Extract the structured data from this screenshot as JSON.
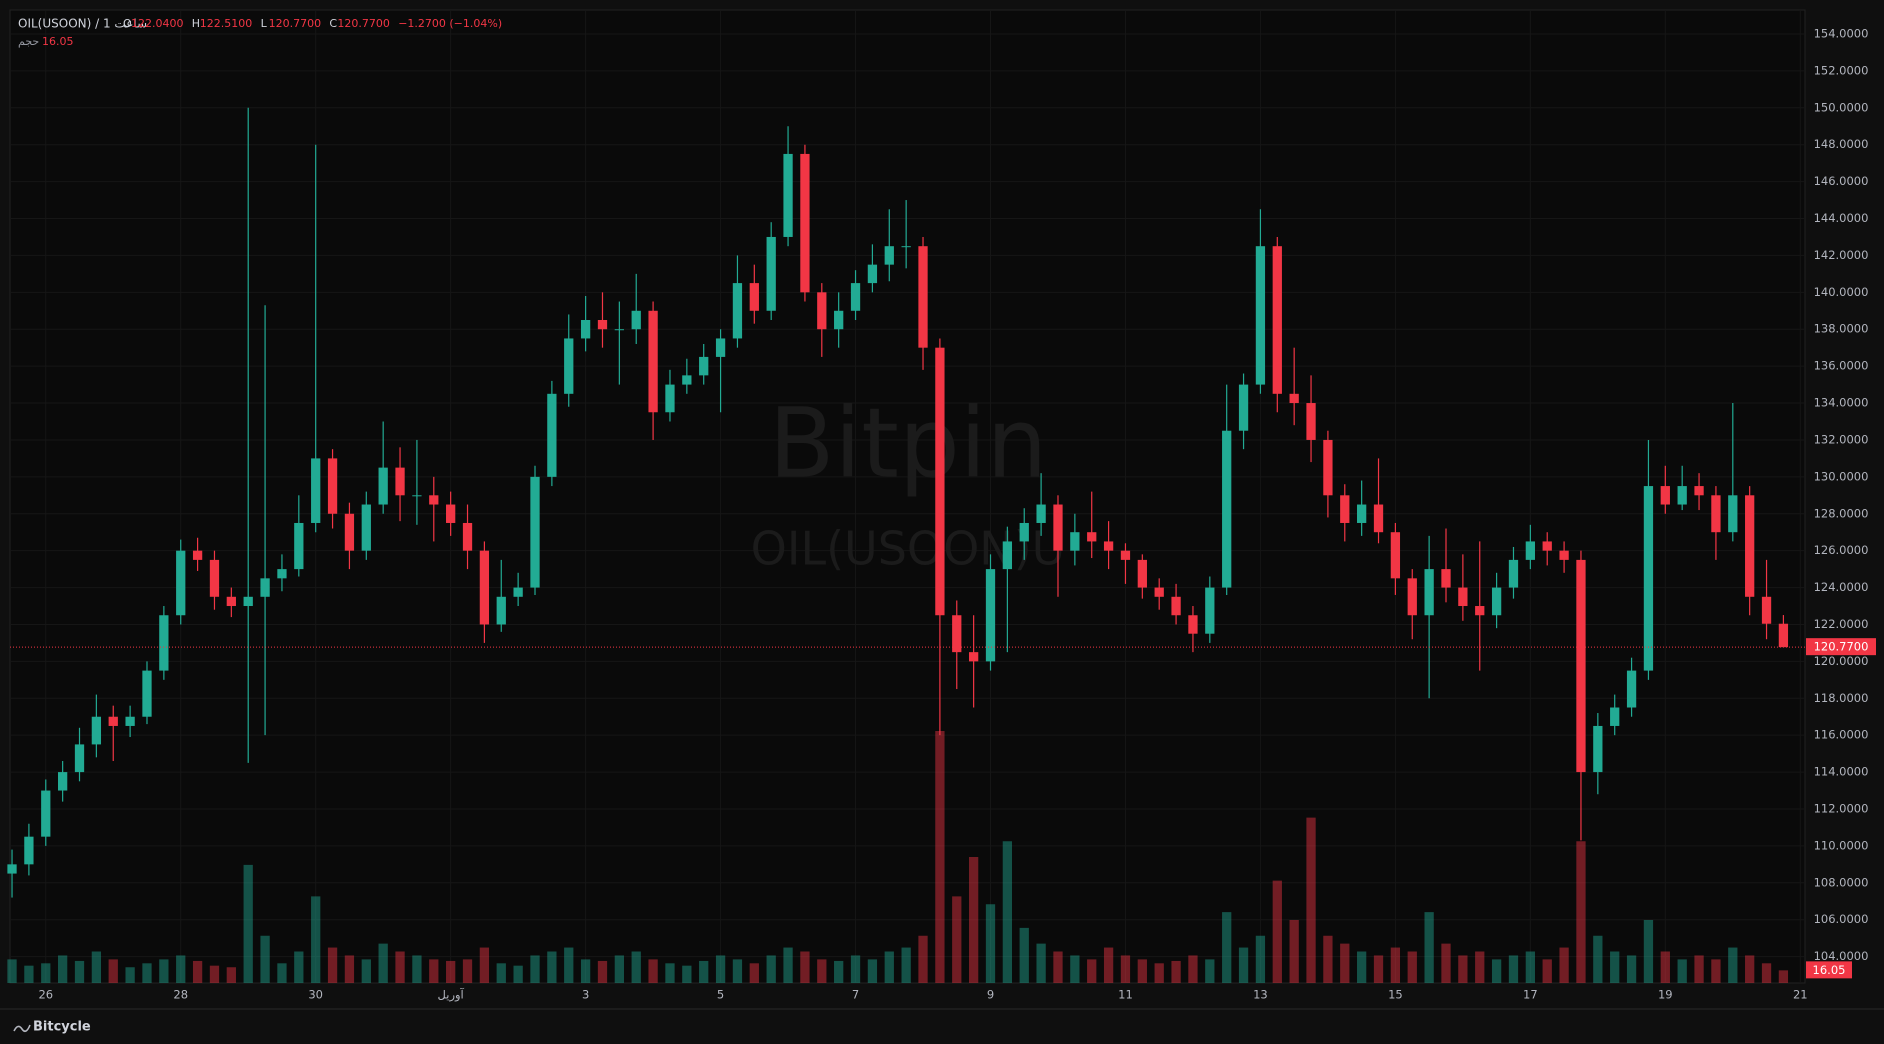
{
  "chart_data": {
    "type": "candlestick",
    "header": {
      "symbol": "OIL(USOON) / 1 ساعت",
      "ohlc": [
        {
          "label": "O",
          "text": "122.0400"
        },
        {
          "label": "H",
          "text": "122.5100"
        },
        {
          "label": "L",
          "text": "120.7700"
        },
        {
          "label": "C",
          "text": "120.7700"
        }
      ],
      "change": "−1.2700 (−1.04%)",
      "volume_label": "حجم",
      "volume_text": "16.05"
    },
    "watermark": {
      "brand": "Bitpin",
      "symbol": "OIL(USOON)U"
    },
    "footer": "Bitcycle",
    "up_color": "#22ab94",
    "down_color": "#f23645",
    "x": [
      -0.5,
      -0.25,
      0,
      0.25,
      0.5,
      0.75,
      1,
      1.25,
      1.5,
      1.75,
      2,
      2.25,
      2.5,
      2.75,
      3,
      3.25,
      3.5,
      3.75,
      4,
      4.25,
      4.5,
      4.75,
      5,
      5.25,
      5.5,
      5.75,
      6,
      6.25,
      6.5,
      6.75,
      7,
      7.25,
      7.5,
      7.75,
      8,
      8.25,
      8.5,
      8.75,
      9,
      9.25,
      9.5,
      9.75,
      10,
      10.25,
      10.5,
      10.75,
      11,
      11.25,
      11.5,
      11.75,
      12,
      12.25,
      12.5,
      12.75,
      13,
      13.25,
      13.5,
      13.75,
      14,
      14.25,
      14.5,
      14.75,
      15,
      15.25,
      15.5,
      15.75,
      16,
      16.25,
      16.5,
      16.75,
      17,
      17.25,
      17.5,
      17.75,
      18,
      18.25,
      18.5,
      18.75,
      19,
      19.25,
      19.5,
      19.75,
      20,
      20.25,
      20.5,
      20.75,
      21,
      21.25,
      21.5,
      21.75,
      22,
      22.25,
      22.5,
      22.75,
      23,
      23.25,
      23.5,
      23.75,
      24,
      24.25,
      24.5,
      24.75,
      25,
      25.25,
      25.5,
      25.75
    ],
    "series": [
      {
        "open": [
          108.5,
          109,
          110.5,
          113,
          114,
          115.5,
          117,
          116.5,
          117,
          119.5,
          122.5,
          126,
          125.5,
          123.5,
          123,
          123.5,
          124.5,
          125,
          127.5,
          131,
          128,
          126,
          128.5,
          130.5,
          129,
          129,
          128.5,
          127.5,
          126,
          122,
          123.5,
          124,
          130,
          134.5,
          137.5,
          138.5,
          138,
          138,
          139,
          133.5,
          135,
          135.5,
          136.5,
          137.5,
          140.5,
          139,
          143,
          147.5,
          140,
          138,
          139,
          140.5,
          141.5,
          142.5,
          142.5,
          137,
          122.5,
          120.5,
          120,
          125,
          126.5,
          127.5,
          128.5,
          126,
          127,
          126.5,
          126,
          125.5,
          124,
          123.5,
          122.5,
          121.5,
          124,
          132.5,
          135,
          142.5,
          134.5,
          134,
          132,
          129,
          127.5,
          128.5,
          127,
          124.5,
          122.5,
          125,
          124,
          123,
          122.5,
          124,
          125.5,
          126.5,
          126,
          125.5,
          114,
          116.5,
          117.5,
          119.5,
          129.5,
          128.5,
          129.5,
          129,
          127,
          129,
          123.5,
          122.04
        ],
        "high": [
          109.8,
          111.2,
          113.6,
          114.6,
          116.4,
          118.2,
          117.6,
          117.6,
          120,
          123,
          126.6,
          126.7,
          126,
          124,
          150,
          139.3,
          125.8,
          129,
          148,
          131.5,
          128.6,
          129.2,
          133,
          131.6,
          132,
          130,
          129.2,
          128.5,
          126.5,
          125.5,
          124.8,
          130.6,
          135.2,
          138.8,
          139.8,
          140,
          139.5,
          141,
          139.5,
          135.8,
          136.4,
          137.2,
          138,
          142,
          141.5,
          143.8,
          149,
          148,
          140.5,
          140,
          141.2,
          142.6,
          144.5,
          145,
          143,
          137.5,
          123.3,
          122.5,
          125.8,
          127.3,
          128.3,
          130.2,
          129,
          128,
          129.2,
          127.6,
          126.4,
          125.8,
          124.5,
          124.2,
          123,
          124.6,
          135,
          135.6,
          144.5,
          143,
          137,
          135.5,
          132.5,
          129.6,
          129.8,
          131,
          127.5,
          125,
          126.8,
          127.2,
          125.8,
          126.5,
          124.8,
          126.2,
          127.4,
          127,
          126.5,
          126,
          117.2,
          118.2,
          120.2,
          132,
          130.6,
          130.6,
          130.2,
          129.5,
          134,
          129.5,
          125.5,
          122.51
        ],
        "low": [
          107.2,
          108.4,
          110,
          112.4,
          113.5,
          114.8,
          114.6,
          115.9,
          116.6,
          119,
          122,
          124.9,
          122.8,
          122.4,
          114.5,
          116,
          123.8,
          124.6,
          127,
          127.2,
          125,
          125.5,
          128,
          127.6,
          127.4,
          126.5,
          126.8,
          125,
          121,
          121.6,
          123,
          123.6,
          129.5,
          133.8,
          136.8,
          137,
          135,
          137.2,
          132,
          133,
          134.5,
          135,
          133.5,
          137,
          138.3,
          138.5,
          142.5,
          139.5,
          136.5,
          137,
          138.5,
          140,
          140.6,
          141.3,
          135.8,
          116,
          118.5,
          117.5,
          119.5,
          120.5,
          125.5,
          126.8,
          123.5,
          125.2,
          125.6,
          125,
          124.2,
          123.4,
          122.8,
          122,
          120.5,
          121,
          123.6,
          131.5,
          134.5,
          133.5,
          132.8,
          130.8,
          127.8,
          126.5,
          126.8,
          126.4,
          123.6,
          121.2,
          118,
          123.2,
          122.2,
          119.5,
          121.8,
          123.4,
          125,
          125.2,
          124.8,
          110.3,
          112.8,
          116,
          117,
          119,
          128,
          128.2,
          128.2,
          125.5,
          126.5,
          122.5,
          121.2,
          120.77
        ],
        "close": [
          109,
          110.5,
          113,
          114,
          115.5,
          117,
          116.5,
          117,
          119.5,
          122.5,
          126,
          125.5,
          123.5,
          123,
          123.5,
          124.5,
          125,
          127.5,
          131,
          128,
          126,
          128.5,
          130.5,
          129,
          129,
          128.5,
          127.5,
          126,
          122,
          123.5,
          124,
          130,
          134.5,
          137.5,
          138.5,
          138,
          138,
          139,
          133.5,
          135,
          135.5,
          136.5,
          137.5,
          140.5,
          139,
          143,
          147.5,
          140,
          138,
          139,
          140.5,
          141.5,
          142.5,
          142.5,
          137,
          122.5,
          120.5,
          120,
          125,
          126.5,
          127.5,
          128.5,
          126,
          127,
          126.5,
          126,
          125.5,
          124,
          123.5,
          122.5,
          121.5,
          124,
          132.5,
          135,
          142.5,
          134.5,
          134,
          132,
          129,
          127.5,
          128.5,
          127,
          124.5,
          122.5,
          125,
          124,
          123,
          122.5,
          124,
          125.5,
          126.5,
          126,
          125.5,
          114,
          116.5,
          117.5,
          119.5,
          129.5,
          128.5,
          129.5,
          129,
          127,
          129,
          123.5,
          122.04,
          120.77
        ],
        "volume": [
          30,
          22,
          25,
          35,
          28,
          40,
          30,
          20,
          25,
          30,
          35,
          28,
          22,
          20,
          150,
          60,
          25,
          40,
          110,
          45,
          35,
          30,
          50,
          40,
          35,
          30,
          28,
          30,
          45,
          25,
          22,
          35,
          40,
          45,
          30,
          28,
          35,
          40,
          30,
          25,
          22,
          28,
          35,
          30,
          25,
          35,
          45,
          40,
          30,
          28,
          35,
          30,
          40,
          45,
          60,
          320,
          110,
          160,
          100,
          180,
          70,
          50,
          40,
          35,
          30,
          45,
          35,
          30,
          25,
          28,
          35,
          30,
          90,
          45,
          60,
          130,
          80,
          210,
          60,
          50,
          40,
          35,
          45,
          40,
          90,
          50,
          35,
          40,
          30,
          35,
          40,
          30,
          45,
          180,
          60,
          40,
          35,
          80,
          40,
          30,
          35,
          30,
          45,
          35,
          25,
          16.05
        ]
      }
    ],
    "xlim": [
      -0.53,
      26.07
    ],
    "xticks": [
      {
        "value": 0,
        "label": "26"
      },
      {
        "value": 2,
        "label": "28"
      },
      {
        "value": 4,
        "label": "30"
      },
      {
        "value": 6,
        "label": "آوریل"
      },
      {
        "value": 8,
        "label": "3"
      },
      {
        "value": 10,
        "label": "5"
      },
      {
        "value": 12,
        "label": "7"
      },
      {
        "value": 14,
        "label": "9"
      },
      {
        "value": 16,
        "label": "11"
      },
      {
        "value": 18,
        "label": "13"
      },
      {
        "value": 20,
        "label": "15"
      },
      {
        "value": 22,
        "label": "17"
      },
      {
        "value": 24,
        "label": "19"
      },
      {
        "value": 26,
        "label": "21"
      }
    ],
    "ylim": [
      102.57,
      155.3
    ],
    "yticks": [
      {
        "value": 104,
        "label": "104.0000"
      },
      {
        "value": 106,
        "label": "106.0000"
      },
      {
        "value": 108,
        "label": "108.0000"
      },
      {
        "value": 110,
        "label": "110.0000"
      },
      {
        "value": 112,
        "label": "112.0000"
      },
      {
        "value": 114,
        "label": "114.0000"
      },
      {
        "value": 116,
        "label": "116.0000"
      },
      {
        "value": 118,
        "label": "118.0000"
      },
      {
        "value": 120,
        "label": "120.0000"
      },
      {
        "value": 122,
        "label": "122.0000"
      },
      {
        "value": 124,
        "label": "124.0000"
      },
      {
        "value": 126,
        "label": "126.0000"
      },
      {
        "value": 128,
        "label": "128.0000"
      },
      {
        "value": 130,
        "label": "130.0000"
      },
      {
        "value": 132,
        "label": "132.0000"
      },
      {
        "value": 134,
        "label": "134.0000"
      },
      {
        "value": 136,
        "label": "136.0000"
      },
      {
        "value": 138,
        "label": "138.0000"
      },
      {
        "value": 140,
        "label": "140.0000"
      },
      {
        "value": 142,
        "label": "142.0000"
      },
      {
        "value": 144,
        "label": "144.0000"
      },
      {
        "value": 146,
        "label": "146.0000"
      },
      {
        "value": 148,
        "label": "148.0000"
      },
      {
        "value": 150,
        "label": "150.0000"
      },
      {
        "value": 152,
        "label": "152.0000"
      },
      {
        "value": 154,
        "label": "154.0000"
      }
    ],
    "price_line": {
      "value": 120.77,
      "label": "120.7700"
    },
    "volume_badge": {
      "value": 16.05,
      "label": "16.05"
    },
    "grid": true
  }
}
